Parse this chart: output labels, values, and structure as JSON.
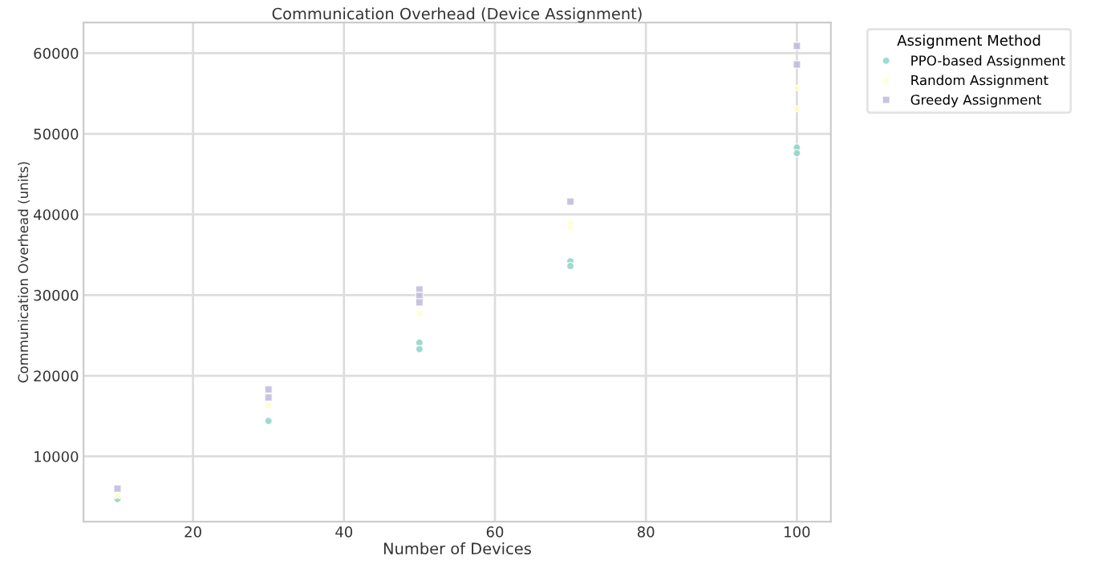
{
  "chart_data": {
    "type": "scatter",
    "title": "Communication Overhead (Device Assignment)",
    "xlabel": "Number of Devices",
    "ylabel": "Communication Overhead (units)",
    "legend_title": "Assignment Method",
    "series": [
      {
        "name": "PPO-based Assignment",
        "color": "#8dd3c7",
        "marker": "circle",
        "x": [
          10,
          30,
          50,
          50,
          70,
          70,
          100,
          100
        ],
        "values": [
          4700,
          14400,
          24100,
          23300,
          34200,
          33600,
          48300,
          47600
        ]
      },
      {
        "name": "Random Assignment",
        "color": "#ffffb3",
        "marker": "cross",
        "x": [
          10,
          30,
          50,
          70,
          70,
          100,
          100
        ],
        "values": [
          5200,
          16300,
          27700,
          38900,
          38400,
          55700,
          53100
        ]
      },
      {
        "name": "Greedy Assignment",
        "color": "#bebada",
        "marker": "square",
        "x": [
          10,
          30,
          30,
          50,
          50,
          50,
          70,
          100,
          100
        ],
        "values": [
          6000,
          18300,
          17300,
          30700,
          29900,
          29100,
          41600,
          60900,
          58600
        ]
      }
    ],
    "xlim": [
      5.5,
      104.5
    ],
    "ylim": [
      1900,
      63800
    ],
    "xticks": [
      20,
      40,
      60,
      80,
      100
    ],
    "yticks": [
      10000,
      20000,
      30000,
      40000,
      50000,
      60000
    ],
    "grid": true,
    "legend": "top right"
  }
}
